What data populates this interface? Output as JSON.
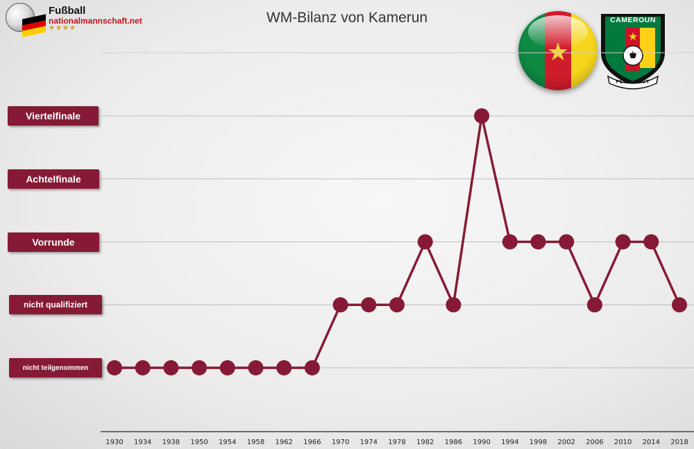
{
  "logo": {
    "title": "Fußball",
    "subtitle": "nationalmannschaft.net",
    "stars": "★★★★",
    "flag_colors": [
      "#000000",
      "#dd0000",
      "#ffce00"
    ]
  },
  "crest": {
    "top_text": "CAMEROUN",
    "bottom_text": "FECA FOOT",
    "colors": {
      "green": "#007a3d",
      "red": "#ce1126",
      "yellow": "#fcd116"
    }
  },
  "flag_colors": [
    "#0e8a43",
    "#d01c2a",
    "#f6d61b"
  ],
  "accent_color": "#861a36",
  "chart_data": {
    "type": "line",
    "title": "WM-Bilanz von Kamerun",
    "xlabel": "",
    "ylabel": "",
    "categories": [
      "1930",
      "1934",
      "1938",
      "1950",
      "1954",
      "1958",
      "1962",
      "1966",
      "1970",
      "1974",
      "1978",
      "1982",
      "1986",
      "1990",
      "1994",
      "1998",
      "2002",
      "2006",
      "2010",
      "2014",
      "2018"
    ],
    "y_levels": [
      "nicht teilgenommen",
      "nicht qualifiziert",
      "Vorrunde",
      "Achtelfinale",
      "Viertelfinale"
    ],
    "series": [
      {
        "values": [
          0,
          0,
          0,
          0,
          0,
          0,
          0,
          0,
          1,
          1,
          1,
          2,
          1,
          4,
          2,
          2,
          2,
          1,
          2,
          2,
          1
        ]
      }
    ],
    "grid": true,
    "legend": "none"
  }
}
